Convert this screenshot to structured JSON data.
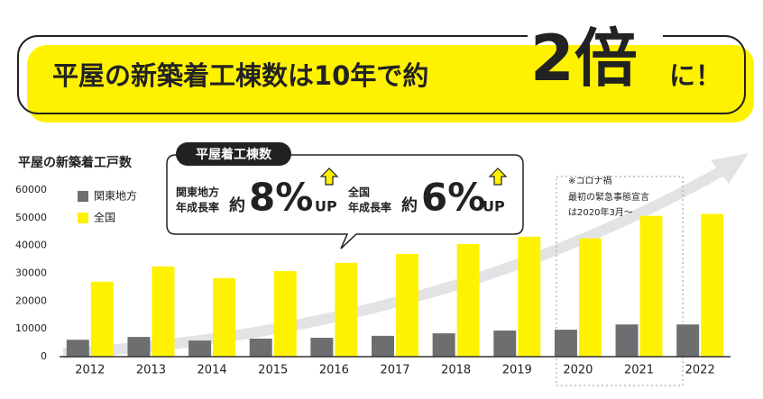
{
  "header": {
    "lead": "平屋の新築着工棟数は10年で約",
    "emphasis": "2倍",
    "tail": "に！"
  },
  "chart_data": {
    "type": "bar",
    "title": "平屋の新築着工戸数",
    "categories": [
      "2012",
      "2013",
      "2014",
      "2015",
      "2016",
      "2017",
      "2018",
      "2019",
      "2020",
      "2021",
      "2022"
    ],
    "series": [
      {
        "name": "関東地方",
        "color": "#6d6e70",
        "values": [
          6100,
          7100,
          5800,
          6500,
          6800,
          7500,
          8400,
          9400,
          9700,
          11600,
          11600
        ]
      },
      {
        "name": "全国",
        "color": "#fff200",
        "values": [
          27000,
          32500,
          28300,
          30800,
          33800,
          37000,
          40600,
          43200,
          42600,
          50700,
          51400
        ]
      }
    ],
    "ylim": [
      0,
      60000
    ],
    "yticks": [
      0,
      10000,
      20000,
      30000,
      40000,
      50000,
      60000
    ],
    "grid": false,
    "callout": {
      "title": "平屋着工棟数",
      "items": [
        {
          "region": "関東地方",
          "label": "年成長率",
          "approx": "約",
          "rate": "8%",
          "up": "UP"
        },
        {
          "region": "全国",
          "label": "年成長率",
          "approx": "約",
          "rate": "6%",
          "up": "UP"
        }
      ]
    },
    "note": {
      "title": "※コロナ禍",
      "line1": "最初の緊急事態宣言",
      "line2": "は2020年3月～"
    }
  }
}
